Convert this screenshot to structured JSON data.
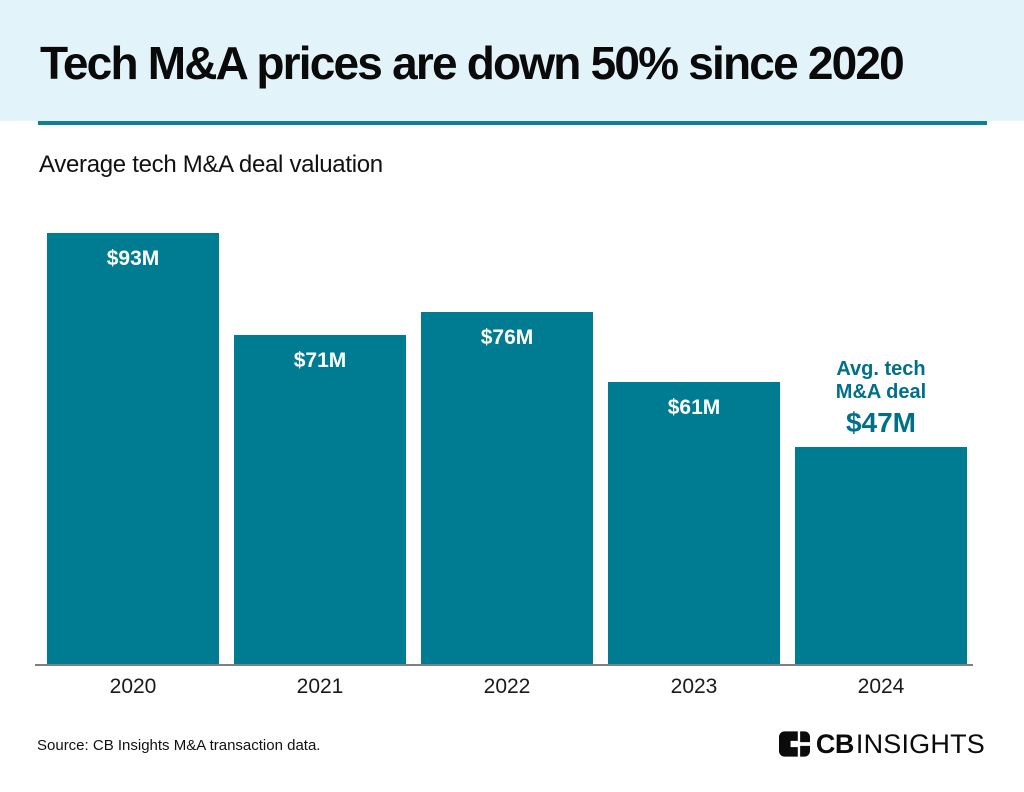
{
  "chart_data": {
    "type": "bar",
    "title": "Tech M&A prices are down 50% since 2020",
    "subtitle": "Average tech M&A deal valuation",
    "categories": [
      "2020",
      "2021",
      "2022",
      "2023",
      "2024"
    ],
    "values": [
      93,
      71,
      76,
      61,
      47
    ],
    "bar_labels": [
      "$93M",
      "$71M",
      "$76M",
      "$61M",
      ""
    ],
    "value_label_position": "inside-top",
    "annotation": {
      "target_category": "2024",
      "line1": "Avg. tech",
      "line2": "M&A deal",
      "value_label": "$47M"
    },
    "ylim": [
      0,
      93
    ],
    "grid": false,
    "legend": false,
    "colors": {
      "bar": "#007C92",
      "header_background": "#E2F3F9",
      "divider": "#137F93",
      "axis_line": "#7F7F7F",
      "bar_label_text": "#FFFFFF",
      "annotation_text": "#00708A"
    }
  },
  "footer": {
    "source": "Source: CB Insights M&A transaction data.",
    "logo": {
      "cb": "CB",
      "insights": "INSIGHTS"
    }
  }
}
